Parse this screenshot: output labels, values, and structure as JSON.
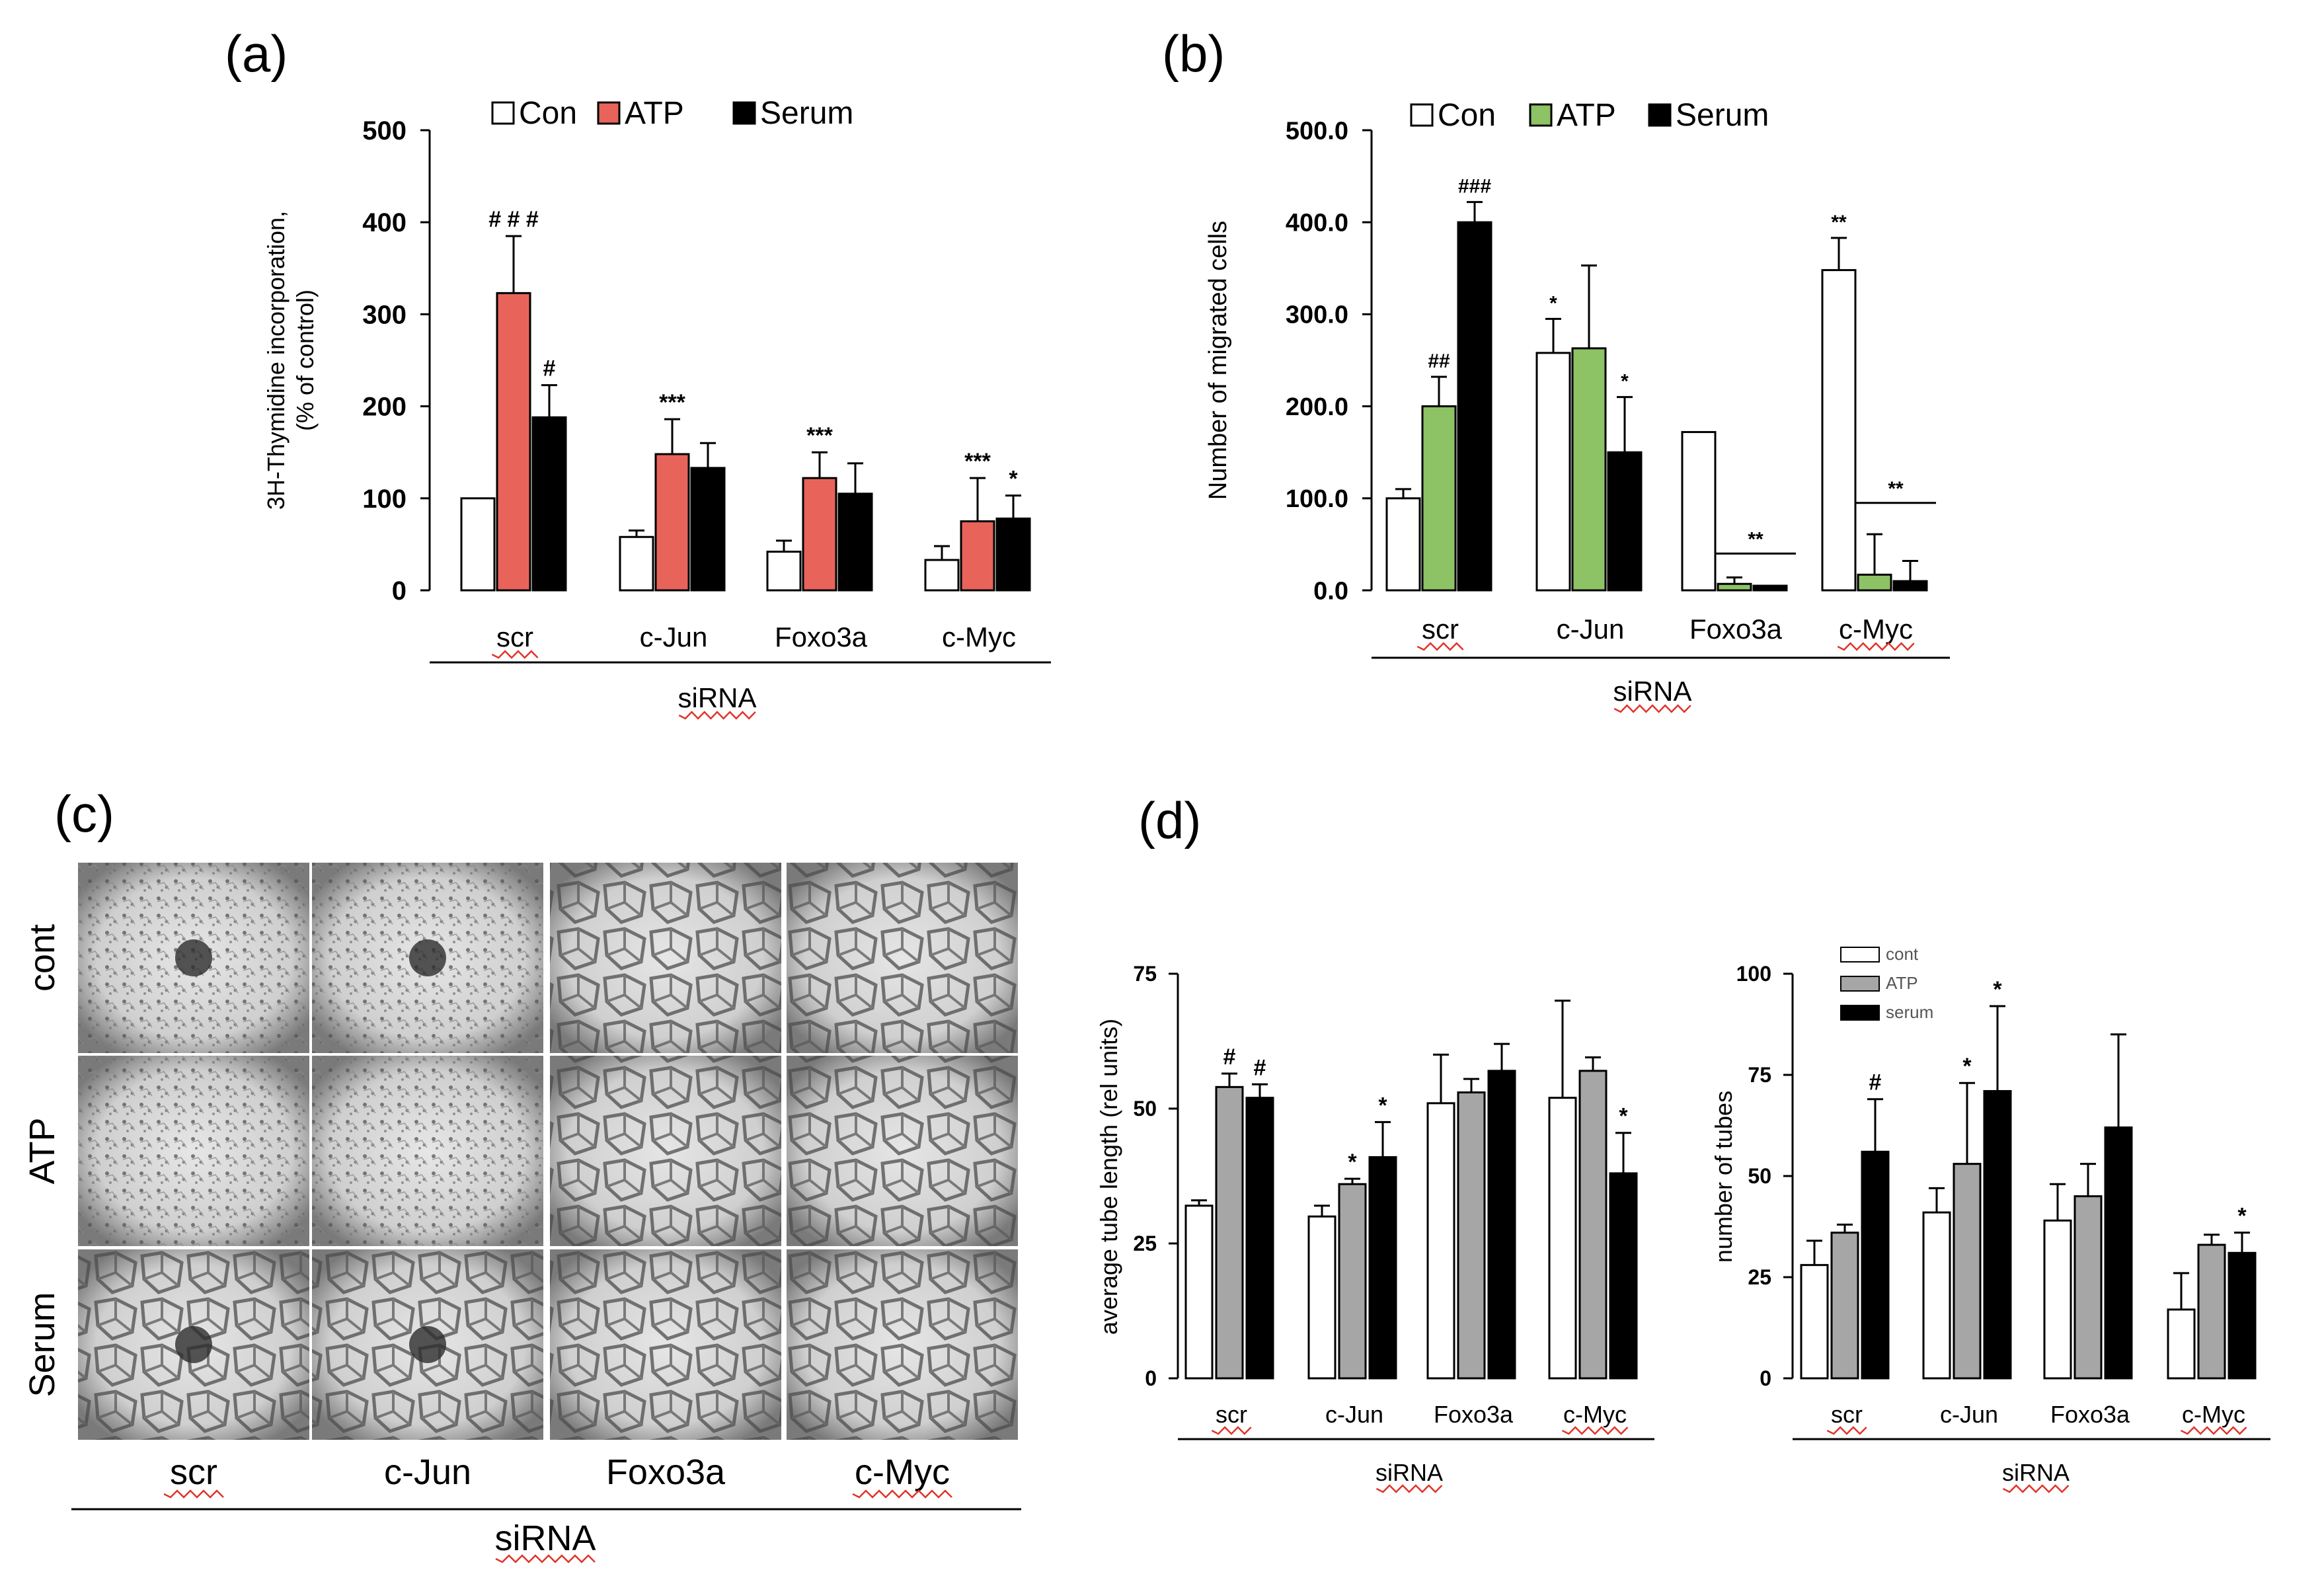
{
  "colors": {
    "con": "#ffffff",
    "atp_a": "#e8645a",
    "atp_b": "#8dc265",
    "serum": "#000000",
    "gray_d": "#a6a6a6",
    "squiggle": "#e0332a",
    "micro_bg": "#d8d8d8"
  },
  "panel_letters": {
    "a": "(a)",
    "b": "(b)",
    "c": "(c)",
    "d": "(d)"
  },
  "chart_data": [
    {
      "id": "a",
      "type": "bar",
      "title": "",
      "ylabel_line1": "3H-Thymidine incorporation,",
      "ylabel_line2": "(% of control)",
      "xlabel": "siRNA",
      "ylim": [
        0,
        500
      ],
      "yticks": [
        "0",
        "100",
        "200",
        "300",
        "400",
        "500"
      ],
      "categories": [
        "scr",
        "c-Jun",
        "Foxo3a",
        "c-Myc"
      ],
      "series": [
        {
          "name": "Con",
          "values": [
            100,
            58,
            42,
            33
          ],
          "errors": [
            0,
            7,
            12,
            15
          ],
          "sig": [
            "",
            "",
            "",
            ""
          ]
        },
        {
          "name": "ATP",
          "values": [
            323,
            148,
            122,
            75
          ],
          "errors": [
            62,
            38,
            28,
            47
          ],
          "sig": [
            "# # #",
            "***",
            "***",
            "***"
          ]
        },
        {
          "name": "Serum",
          "values": [
            188,
            133,
            105,
            78
          ],
          "errors": [
            35,
            27,
            33,
            25
          ],
          "sig": [
            "#",
            "",
            "",
            "*"
          ]
        }
      ]
    },
    {
      "id": "b",
      "type": "bar",
      "ylabel": "Number of migrated cells",
      "xlabel": "siRNA",
      "ylim": [
        0,
        500
      ],
      "yticks": [
        "0.0",
        "100.0",
        "200.0",
        "300.0",
        "400.0",
        "500.0"
      ],
      "categories": [
        "scr",
        "c-Jun",
        "Foxo3a",
        "c-Myc"
      ],
      "series": [
        {
          "name": "Con",
          "values": [
            100,
            258,
            172,
            348
          ],
          "errors": [
            10,
            37,
            0,
            35
          ],
          "sig": [
            "",
            "*",
            "",
            "**"
          ]
        },
        {
          "name": "ATP",
          "values": [
            200,
            263,
            7,
            17
          ],
          "errors": [
            32,
            90,
            7,
            44
          ],
          "sig": [
            "##",
            "",
            "",
            ""
          ]
        },
        {
          "name": "Serum",
          "values": [
            400,
            150,
            5,
            10
          ],
          "errors": [
            22,
            60,
            0,
            22
          ],
          "sig": [
            "###",
            "*",
            "",
            ""
          ]
        }
      ],
      "bracket_sig": [
        "",
        "",
        "**",
        "**"
      ]
    },
    {
      "id": "d1",
      "type": "bar",
      "ylabel": "average tube length (rel units)",
      "xlabel": "siRNA",
      "ylim": [
        0,
        75
      ],
      "yticks": [
        "0",
        "25",
        "50",
        "75"
      ],
      "categories": [
        "scr",
        "c-Jun",
        "Foxo3a",
        "c-Myc"
      ],
      "series": [
        {
          "name": "cont",
          "values": [
            32,
            30,
            51,
            52
          ],
          "errors": [
            1,
            2,
            9,
            18
          ],
          "sig": [
            "",
            "",
            "",
            ""
          ]
        },
        {
          "name": "ATP",
          "values": [
            54,
            36,
            53,
            57
          ],
          "errors": [
            2.5,
            1,
            2.5,
            2.5
          ],
          "sig": [
            "#",
            "*",
            "",
            ""
          ]
        },
        {
          "name": "serum",
          "values": [
            52,
            41,
            57,
            38
          ],
          "errors": [
            2.5,
            6.5,
            5,
            7.5
          ],
          "sig": [
            "#",
            "*",
            "",
            "*"
          ]
        }
      ]
    },
    {
      "id": "d2",
      "type": "bar",
      "ylabel": "number of tubes",
      "xlabel": "siRNA",
      "ylim": [
        0,
        100
      ],
      "yticks": [
        "0",
        "25",
        "50",
        "75",
        "100"
      ],
      "categories": [
        "scr",
        "c-Jun",
        "Foxo3a",
        "c-Myc"
      ],
      "series": [
        {
          "name": "cont",
          "values": [
            28,
            41,
            39,
            17
          ],
          "errors": [
            6,
            6,
            9,
            9
          ],
          "sig": [
            "",
            "",
            "",
            ""
          ]
        },
        {
          "name": "ATP",
          "values": [
            36,
            53,
            45,
            33
          ],
          "errors": [
            2,
            20,
            8,
            2.5
          ],
          "sig": [
            "",
            "*",
            "",
            ""
          ]
        },
        {
          "name": "serum",
          "values": [
            56,
            71,
            62,
            31
          ],
          "errors": [
            13,
            21,
            23,
            5
          ],
          "sig": [
            "#",
            "*",
            "",
            "*"
          ]
        }
      ]
    }
  ],
  "micrograph": {
    "row_labels": [
      "cont",
      "ATP",
      "Serum"
    ],
    "col_labels": [
      "scr",
      "c-Jun",
      "Foxo3a",
      "c-Myc"
    ],
    "xlabel": "siRNA"
  }
}
